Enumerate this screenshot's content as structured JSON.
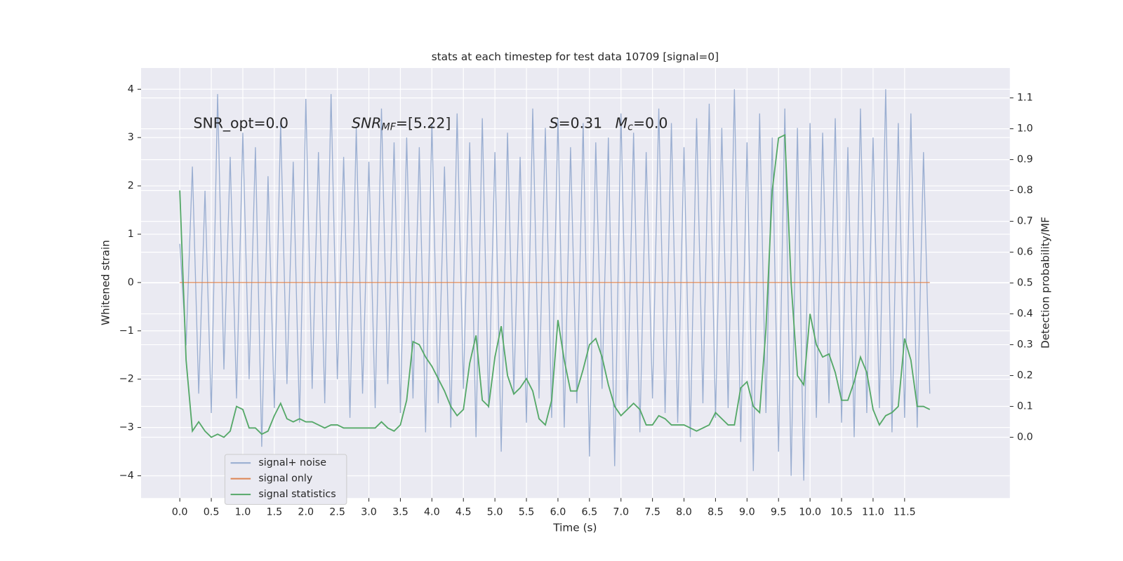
{
  "chart_data": {
    "type": "line",
    "title": "stats at each timestep for test data 10709 [signal=0]",
    "xlabel": "Time (s)",
    "ylabel": "Whitened strain",
    "y2label": "Detection probability/MF",
    "annotations": [
      [
        "SNR_opt=0.0"
      ],
      [
        "SNR",
        "MF",
        "=[5.22]"
      ],
      [
        "S",
        "=0.31"
      ],
      [
        "M",
        "c",
        "=0.0"
      ]
    ],
    "legend": "lower left",
    "grid": true,
    "xlim": [
      -0.614,
      13.17
    ],
    "ylim": [
      -4.46,
      4.44
    ],
    "y2lim": [
      -0.197,
      1.197
    ],
    "xticks": [
      {
        "value": 0,
        "label": "0.0"
      },
      0.5,
      {
        "value": 1,
        "label": "1.0"
      },
      1.5,
      {
        "value": 2,
        "label": "2.0"
      },
      2.5,
      {
        "value": 3,
        "label": "3.0"
      },
      3.5,
      {
        "value": 4,
        "label": "4.0"
      },
      4.5,
      {
        "value": 5,
        "label": "5.0"
      },
      5.5,
      {
        "value": 6,
        "label": "6.0"
      },
      6.5,
      {
        "value": 7,
        "label": "7.0"
      },
      7.5,
      {
        "value": 8,
        "label": "8.0"
      },
      8.5,
      {
        "value": 9,
        "label": "9.0"
      },
      9.5,
      {
        "value": 10,
        "label": "10.0"
      },
      10.5,
      {
        "value": 11,
        "label": "11.0"
      },
      11.5
    ],
    "yticks": [
      {
        "value": -4,
        "label": "−4"
      },
      {
        "value": -3,
        "label": "−3"
      },
      {
        "value": -2,
        "label": "−2"
      },
      {
        "value": -1,
        "label": "−1"
      },
      0,
      1,
      2,
      3,
      4
    ],
    "y2ticks": [
      {
        "value": 0,
        "label": "0.0"
      },
      0.1,
      0.2,
      0.3,
      0.4,
      0.5,
      0.6,
      0.7,
      0.8,
      0.9,
      {
        "value": 1,
        "label": "1.0"
      },
      1.1
    ],
    "x": [
      0,
      0.1,
      0.2,
      0.3,
      0.4,
      0.5,
      0.6,
      0.7,
      0.8,
      0.9,
      1,
      1.1,
      1.2,
      1.3,
      1.4,
      1.5,
      1.6,
      1.7,
      1.8,
      1.9,
      2,
      2.1,
      2.2,
      2.3,
      2.4,
      2.5,
      2.6,
      2.7,
      2.8,
      2.9,
      3,
      3.1,
      3.2,
      3.3,
      3.4,
      3.5,
      3.6,
      3.7,
      3.8,
      3.9,
      4,
      4.1,
      4.2,
      4.3,
      4.4,
      4.5,
      4.6,
      4.7,
      4.8,
      4.9,
      5,
      5.1,
      5.2,
      5.3,
      5.4,
      5.5,
      5.6,
      5.7,
      5.8,
      5.9,
      6,
      6.1,
      6.2,
      6.3,
      6.4,
      6.5,
      6.6,
      6.7,
      6.8,
      6.9,
      7,
      7.1,
      7.2,
      7.3,
      7.4,
      7.5,
      7.6,
      7.7,
      7.8,
      7.9,
      8,
      8.1,
      8.2,
      8.3,
      8.4,
      8.5,
      8.6,
      8.7,
      8.8,
      8.9,
      9,
      9.1,
      9.2,
      9.3,
      9.4,
      9.5,
      9.6,
      9.7,
      9.8,
      9.9,
      10,
      10.1,
      10.2,
      10.3,
      10.4,
      10.5,
      10.6,
      10.7,
      10.8,
      10.9,
      11,
      11.1,
      11.2,
      11.3,
      11.4,
      11.5,
      11.6,
      11.7,
      11.8,
      11.9
    ],
    "series": [
      {
        "name": "signal+ noise",
        "color": "#9aaed1",
        "values": [
          0.8,
          -1.3,
          2.4,
          -2.3,
          1.9,
          -2.7,
          3.9,
          -1.8,
          2.6,
          -2.4,
          3.1,
          -2.0,
          2.8,
          -3.4,
          2.2,
          -2.6,
          3.3,
          -2.1,
          2.5,
          -2.9,
          3.8,
          -2.2,
          2.7,
          -2.5,
          3.9,
          -2.0,
          2.6,
          -2.8,
          3.2,
          -2.3,
          2.5,
          -2.6,
          3.6,
          -2.1,
          2.9,
          -2.7,
          3.0,
          -2.4,
          2.8,
          -3.1,
          3.3,
          -2.5,
          2.4,
          -3.0,
          3.5,
          -2.2,
          2.9,
          -3.2,
          3.4,
          -2.6,
          2.7,
          -3.5,
          3.1,
          -2.3,
          2.6,
          -2.9,
          3.6,
          -2.4,
          3.2,
          -2.8,
          3.4,
          -3.0,
          2.8,
          -2.5,
          3.3,
          -3.6,
          2.9,
          -2.2,
          3.0,
          -3.8,
          3.5,
          -2.6,
          3.1,
          -3.1,
          2.7,
          -2.4,
          3.6,
          -2.7,
          3.3,
          -2.9,
          2.8,
          -3.2,
          3.4,
          -2.5,
          3.7,
          -2.8,
          3.2,
          -2.6,
          4.0,
          -3.3,
          2.9,
          -3.9,
          3.5,
          -2.7,
          3.0,
          -3.5,
          3.6,
          -4.0,
          3.2,
          -4.1,
          3.3,
          -2.8,
          3.1,
          -2.5,
          3.4,
          -2.9,
          2.8,
          -3.2,
          3.6,
          -2.7,
          3.0,
          -2.6,
          4.0,
          -3.1,
          3.3,
          -2.8,
          3.5,
          -3.0,
          2.7,
          -2.3
        ]
      },
      {
        "name": "signal only",
        "color": "#dd8452",
        "values": [
          0,
          0,
          0,
          0,
          0,
          0,
          0,
          0,
          0,
          0,
          0,
          0,
          0,
          0,
          0,
          0,
          0,
          0,
          0,
          0,
          0,
          0,
          0,
          0,
          0,
          0,
          0,
          0,
          0,
          0,
          0,
          0,
          0,
          0,
          0,
          0,
          0,
          0,
          0,
          0,
          0,
          0,
          0,
          0,
          0,
          0,
          0,
          0,
          0,
          0,
          0,
          0,
          0,
          0,
          0,
          0,
          0,
          0,
          0,
          0,
          0,
          0,
          0,
          0,
          0,
          0,
          0,
          0,
          0,
          0,
          0,
          0,
          0,
          0,
          0,
          0,
          0,
          0,
          0,
          0,
          0,
          0,
          0,
          0,
          0,
          0,
          0,
          0,
          0,
          0,
          0,
          0,
          0,
          0,
          0,
          0,
          0,
          0,
          0,
          0,
          0,
          0,
          0,
          0,
          0,
          0,
          0,
          0,
          0,
          0,
          0,
          0,
          0,
          0,
          0,
          0,
          0,
          0,
          0,
          0
        ]
      },
      {
        "name": "signal statistics",
        "color": "#55a868",
        "axis": "y2",
        "values": [
          0.8,
          0.25,
          0.02,
          0.05,
          0.02,
          0.0,
          0.01,
          0.0,
          0.02,
          0.1,
          0.09,
          0.03,
          0.03,
          0.01,
          0.02,
          0.07,
          0.11,
          0.06,
          0.05,
          0.06,
          0.05,
          0.05,
          0.04,
          0.03,
          0.04,
          0.04,
          0.03,
          0.03,
          0.03,
          0.03,
          0.03,
          0.03,
          0.05,
          0.03,
          0.02,
          0.04,
          0.12,
          0.31,
          0.3,
          0.26,
          0.23,
          0.19,
          0.15,
          0.1,
          0.07,
          0.09,
          0.24,
          0.33,
          0.12,
          0.1,
          0.26,
          0.36,
          0.2,
          0.14,
          0.16,
          0.19,
          0.15,
          0.06,
          0.04,
          0.12,
          0.38,
          0.25,
          0.15,
          0.15,
          0.22,
          0.3,
          0.32,
          0.26,
          0.17,
          0.1,
          0.07,
          0.09,
          0.11,
          0.09,
          0.04,
          0.04,
          0.07,
          0.06,
          0.04,
          0.04,
          0.04,
          0.03,
          0.02,
          0.03,
          0.04,
          0.08,
          0.06,
          0.04,
          0.04,
          0.16,
          0.18,
          0.1,
          0.08,
          0.35,
          0.8,
          0.97,
          0.98,
          0.5,
          0.2,
          0.17,
          0.4,
          0.3,
          0.26,
          0.27,
          0.21,
          0.12,
          0.12,
          0.18,
          0.26,
          0.21,
          0.09,
          0.04,
          0.07,
          0.08,
          0.1,
          0.32,
          0.25,
          0.1,
          0.1,
          0.09
        ]
      }
    ]
  }
}
